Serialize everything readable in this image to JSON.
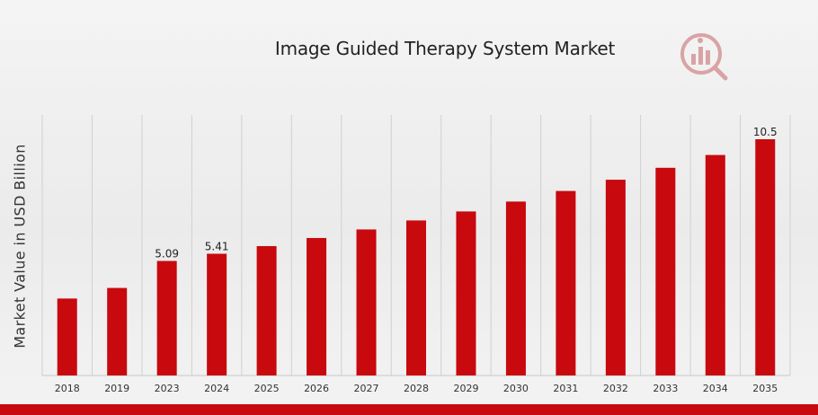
{
  "chart_data": {
    "type": "bar",
    "title": "Image Guided Therapy System Market",
    "xlabel": "",
    "ylabel": "Market Value in USD Billion",
    "categories": [
      "2018",
      "2019",
      "2023",
      "2024",
      "2025",
      "2026",
      "2027",
      "2028",
      "2029",
      "2030",
      "2031",
      "2032",
      "2033",
      "2034",
      "2035"
    ],
    "values": [
      3.42,
      3.89,
      5.09,
      5.41,
      5.75,
      6.11,
      6.49,
      6.89,
      7.29,
      7.73,
      8.2,
      8.7,
      9.23,
      9.8,
      10.5
    ],
    "data_labels": {
      "2023": "5.09",
      "2024": "5.41",
      "2035": "10.5"
    },
    "ylim": [
      0,
      10.5
    ],
    "grid": "vertical",
    "legend": "none"
  },
  "colors": {
    "bar": "#c8090e",
    "accent": "#c8090e",
    "grid": "#d0d0d0"
  },
  "logo": {
    "icon": "mrfr-logo-icon"
  }
}
